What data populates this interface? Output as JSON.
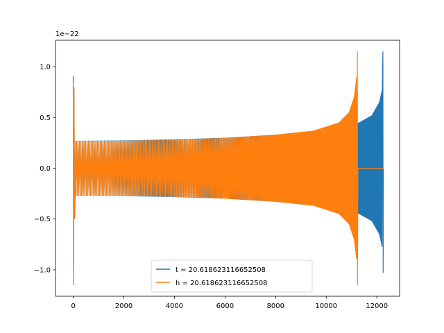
{
  "chart_data": {
    "type": "line",
    "title": "",
    "xlabel": "",
    "ylabel": "",
    "offset_text": "1e−22",
    "xlim": [
      -700,
      12900
    ],
    "ylim": [
      -1.26,
      1.26
    ],
    "x_ticks": [
      0,
      2000,
      4000,
      6000,
      8000,
      10000,
      12000
    ],
    "x_tick_labels": [
      "0",
      "2000",
      "4000",
      "6000",
      "8000",
      "10000",
      "12000"
    ],
    "y_ticks": [
      -1.0,
      -0.5,
      0.0,
      0.5,
      1.0
    ],
    "y_tick_labels": [
      "−1.0",
      "−0.5",
      "0.0",
      "0.5",
      "1.0"
    ],
    "grid": false,
    "legend_position": "lower center",
    "series": [
      {
        "name": "t = 20.618623116652508",
        "color": "#1f77b4",
        "start_spike": [
          0.91,
          -1.15
        ],
        "envelope": [
          {
            "x": 120,
            "amp": 0.27
          },
          {
            "x": 2000,
            "amp": 0.275
          },
          {
            "x": 4000,
            "amp": 0.285
          },
          {
            "x": 6000,
            "amp": 0.3
          },
          {
            "x": 8000,
            "amp": 0.33
          },
          {
            "x": 10000,
            "amp": 0.38
          },
          {
            "x": 11300,
            "amp": 0.45
          },
          {
            "x": 11800,
            "amp": 0.52
          },
          {
            "x": 12100,
            "amp": 0.65
          },
          {
            "x": 12230,
            "amp": 0.8
          }
        ],
        "end_spike": {
          "x": 12260,
          "max": 1.15,
          "min": -1.03
        },
        "end_x": 12260
      },
      {
        "name": "h = 20.618623116652508",
        "color": "#ff7f0e",
        "start_spike": [
          0.85,
          -1.15
        ],
        "envelope": [
          {
            "x": 120,
            "amp": 0.265
          },
          {
            "x": 2000,
            "amp": 0.27
          },
          {
            "x": 4000,
            "amp": 0.28
          },
          {
            "x": 6000,
            "amp": 0.3
          },
          {
            "x": 8000,
            "amp": 0.33
          },
          {
            "x": 9500,
            "amp": 0.37
          },
          {
            "x": 10500,
            "amp": 0.45
          },
          {
            "x": 10900,
            "amp": 0.55
          },
          {
            "x": 11100,
            "amp": 0.7
          },
          {
            "x": 11200,
            "amp": 0.9
          }
        ],
        "end_spike": {
          "x": 11250,
          "max": 1.15,
          "min": -1.15
        },
        "end_x": 11250,
        "flat_tail_until": 12260
      }
    ]
  }
}
